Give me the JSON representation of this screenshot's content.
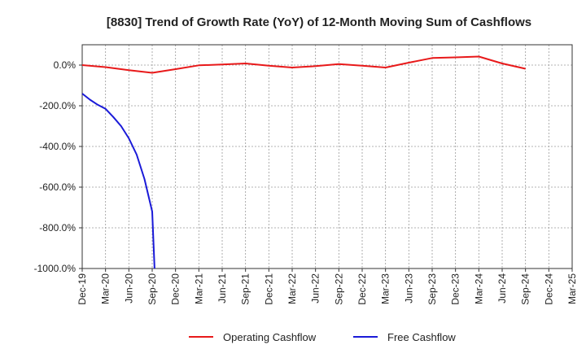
{
  "chart_data": {
    "type": "line",
    "title": "[8830]  Trend of Growth Rate (YoY) of 12-Month Moving Sum of Cashflows",
    "xlabel": "",
    "ylabel": "",
    "ylim": [
      -1000,
      100
    ],
    "y_ticks": [
      0,
      -200,
      -400,
      -600,
      -800,
      -1000
    ],
    "y_tick_labels": [
      "0.0%",
      "-200.0%",
      "-400.0%",
      "-600.0%",
      "-800.0%",
      "-1000.0%"
    ],
    "x_tick_labels": [
      "Dec-19",
      "Mar-20",
      "Jun-20",
      "Sep-20",
      "Dec-20",
      "Mar-21",
      "Jun-21",
      "Sep-21",
      "Dec-21",
      "Mar-22",
      "Jun-22",
      "Sep-22",
      "Dec-22",
      "Mar-23",
      "Jun-23",
      "Sep-23",
      "Dec-23",
      "Mar-24",
      "Jun-24",
      "Sep-24",
      "Dec-24",
      "Mar-25"
    ],
    "grid": true,
    "legend_position": "bottom",
    "series": [
      {
        "name": "Operating Cashflow",
        "color": "#e8191a",
        "x": [
          "Dec-19",
          "Mar-20",
          "Jun-20",
          "Sep-20",
          "Dec-20",
          "Mar-21",
          "Jun-21",
          "Sep-21",
          "Dec-21",
          "Mar-22",
          "Jun-22",
          "Sep-22",
          "Dec-22",
          "Mar-23",
          "Jun-23",
          "Sep-23",
          "Dec-23",
          "Mar-24",
          "Jun-24",
          "Sep-24"
        ],
        "values": [
          0,
          -10,
          -25,
          -38,
          -20,
          -1,
          3,
          8,
          -3,
          -12,
          -5,
          5,
          -3,
          -12,
          12,
          35,
          38,
          42,
          8,
          -18
        ]
      },
      {
        "name": "Free Cashflow",
        "color": "#1a1ad8",
        "x": [
          "Dec-19",
          "Jan-20",
          "Feb-20",
          "Mar-20",
          "Apr-20",
          "May-20",
          "Jun-20",
          "Jul-20",
          "Aug-20",
          "Sep-20",
          "Oct-20"
        ],
        "x_index": [
          0,
          0.333,
          0.667,
          1,
          1.333,
          1.667,
          2,
          2.333,
          2.667,
          3.0,
          3.1
        ],
        "values": [
          -140,
          -170,
          -195,
          -215,
          -255,
          -300,
          -360,
          -440,
          -560,
          -720,
          -1000
        ]
      }
    ]
  }
}
